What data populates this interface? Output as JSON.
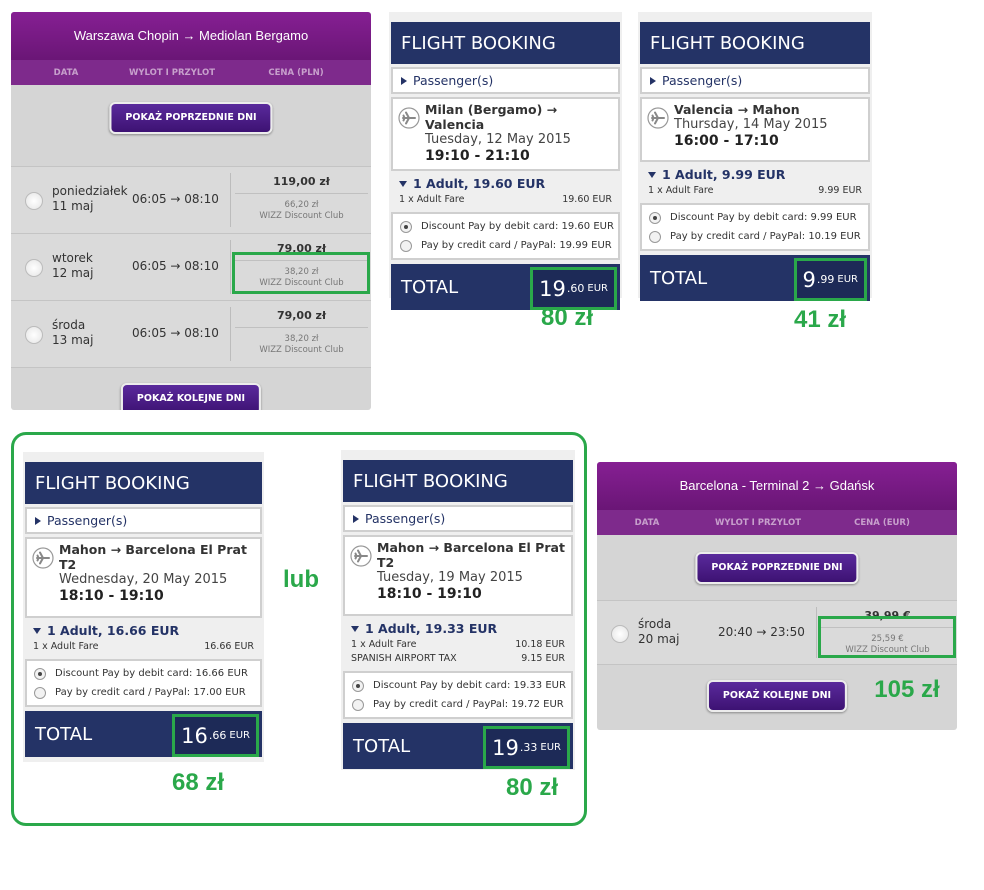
{
  "wizz_panels": [
    {
      "route": "Warszawa Chopin → Mediolan Bergamo",
      "columns": [
        "DATA",
        "WYLOT I PRZYLOT",
        "CENA (PLN)"
      ],
      "prev_button": "POKAŻ POPRZEDNIE DNI",
      "rows": [
        {
          "day": "poniedziałek",
          "date": "11 maj",
          "time": "06:05 → 08:10",
          "price": "119,00 zł",
          "club_price": "66,20 zł",
          "club_label": "WIZZ Discount Club"
        },
        {
          "day": "wtorek",
          "date": "12 maj",
          "time": "06:05 → 08:10",
          "price": "79,00 zł",
          "club_price": "38,20 zł",
          "club_label": "WIZZ Discount Club"
        },
        {
          "day": "środa",
          "date": "13 maj",
          "time": "06:05 → 08:10",
          "price": "79,00 zł",
          "club_price": "38,20 zł",
          "club_label": "WIZZ Discount Club"
        }
      ],
      "next_button": "POKAŻ KOLEJNE DNI"
    },
    {
      "route": "Barcelona - Terminal 2 → Gdańsk",
      "columns": [
        "DATA",
        "WYLOT I PRZYLOT",
        "CENA (EUR)"
      ],
      "prev_button": "POKAŻ POPRZEDNIE DNI",
      "rows": [
        {
          "day": "środa",
          "date": "20 maj",
          "time": "20:40 → 23:50",
          "price": "39,99 €",
          "club_price": "25,59 €",
          "club_label": "WIZZ Discount Club"
        }
      ],
      "next_button": "POKAŻ KOLEJNE DNI"
    }
  ],
  "bookings": [
    {
      "title": "FLIGHT BOOKING",
      "passenger": "Passenger(s)",
      "route": "Milan (Bergamo) → Valencia",
      "date": "Tuesday, 12 May 2015",
      "time": "19:10 - 21:10",
      "adult": "1 Adult, 19.60 EUR",
      "fares": [
        {
          "label": "1 x Adult Fare",
          "amount": "19.60 EUR"
        }
      ],
      "payments": [
        "Discount Pay by debit card: 19.60 EUR",
        "Pay by credit card / PayPal: 19.99 EUR"
      ],
      "total_label": "TOTAL",
      "total_main": "19",
      "total_decimals": ".60",
      "total_currency": "EUR"
    },
    {
      "title": "FLIGHT BOOKING",
      "passenger": "Passenger(s)",
      "route": "Valencia → Mahon",
      "date": "Thursday, 14 May 2015",
      "time": "16:00 - 17:10",
      "adult": "1 Adult, 9.99 EUR",
      "fares": [
        {
          "label": "1 x Adult Fare",
          "amount": "9.99 EUR"
        }
      ],
      "payments": [
        "Discount Pay by debit card: 9.99 EUR",
        "Pay by credit card / PayPal: 10.19 EUR"
      ],
      "total_label": "TOTAL",
      "total_main": "9",
      "total_decimals": ".99",
      "total_currency": "EUR"
    },
    {
      "title": "FLIGHT BOOKING",
      "passenger": "Passenger(s)",
      "route": "Mahon → Barcelona El Prat T2",
      "date": "Wednesday, 20 May 2015",
      "time": "18:10 - 19:10",
      "adult": "1 Adult, 16.66 EUR",
      "fares": [
        {
          "label": "1 x Adult Fare",
          "amount": "16.66 EUR"
        }
      ],
      "payments": [
        "Discount Pay by debit card: 16.66 EUR",
        "Pay by credit card / PayPal: 17.00 EUR"
      ],
      "total_label": "TOTAL",
      "total_main": "16",
      "total_decimals": ".66",
      "total_currency": "EUR"
    },
    {
      "title": "FLIGHT BOOKING",
      "passenger": "Passenger(s)",
      "route": "Mahon → Barcelona El Prat T2",
      "date": "Tuesday, 19 May 2015",
      "time": "18:10 - 19:10",
      "adult": "1 Adult, 19.33 EUR",
      "fares": [
        {
          "label": "1 x Adult Fare",
          "amount": "10.18 EUR"
        },
        {
          "label": "SPANISH AIRPORT TAX",
          "amount": "9.15 EUR"
        }
      ],
      "payments": [
        "Discount Pay by debit card: 19.33 EUR",
        "Pay by credit card / PayPal: 19.72 EUR"
      ],
      "total_label": "TOTAL",
      "total_main": "19",
      "total_decimals": ".33",
      "total_currency": "EUR"
    }
  ],
  "annotations": [
    "80 zł",
    "41 zł",
    "lub",
    "68 zł",
    "80 zł",
    "105 zł"
  ]
}
